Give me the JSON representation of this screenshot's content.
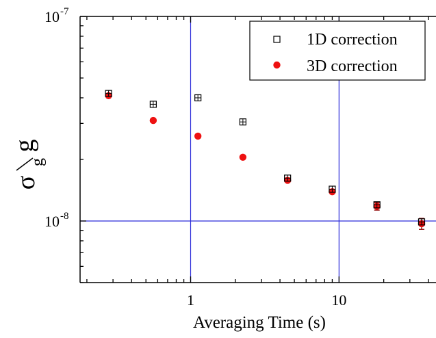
{
  "chart_data": {
    "type": "scatter",
    "xlabel": "Averaging Time (s)",
    "ylabel": {
      "sigma": "σ",
      "sub": "g",
      "over": "g"
    },
    "x_scale": "log",
    "y_scale": "log",
    "xlim": [
      0.18,
      45
    ],
    "ylim": [
      5e-09,
      1e-07
    ],
    "x_ticks": [
      {
        "value": 1,
        "label": "1"
      },
      {
        "value": 10,
        "label": "10"
      }
    ],
    "y_ticks": [
      {
        "value": 1e-08,
        "base": "10",
        "exp": "-8"
      },
      {
        "value": 1e-07,
        "base": "10",
        "exp": "-7"
      }
    ],
    "grid": {
      "x": [
        1,
        10
      ],
      "y": [
        1e-08
      ],
      "color": "#2b2bd9"
    },
    "legend": {
      "placement": "top-right"
    },
    "series": [
      {
        "name": "1D correction",
        "marker": "open-square",
        "color": "#000000",
        "x": [
          0.28,
          0.56,
          1.12,
          2.25,
          4.5,
          9.0,
          18.0,
          36.0
        ],
        "y": [
          4.2e-08,
          3.72e-08,
          4e-08,
          3.05e-08,
          1.62e-08,
          1.43e-08,
          1.2e-08,
          9.9e-09
        ]
      },
      {
        "name": "3D correction",
        "marker": "filled-circle",
        "color": "#ee1111",
        "error_color": "#8b0000",
        "x": [
          0.28,
          0.56,
          1.12,
          2.25,
          4.5,
          9.0,
          18.0,
          36.0
        ],
        "y": [
          4.1e-08,
          3.1e-08,
          2.6e-08,
          2.05e-08,
          1.58e-08,
          1.39e-08,
          1.18e-08,
          9.7e-09
        ],
        "err": [
          2e-10,
          2e-10,
          2e-10,
          2e-10,
          3e-10,
          3e-10,
          5e-10,
          6e-10
        ]
      }
    ]
  }
}
